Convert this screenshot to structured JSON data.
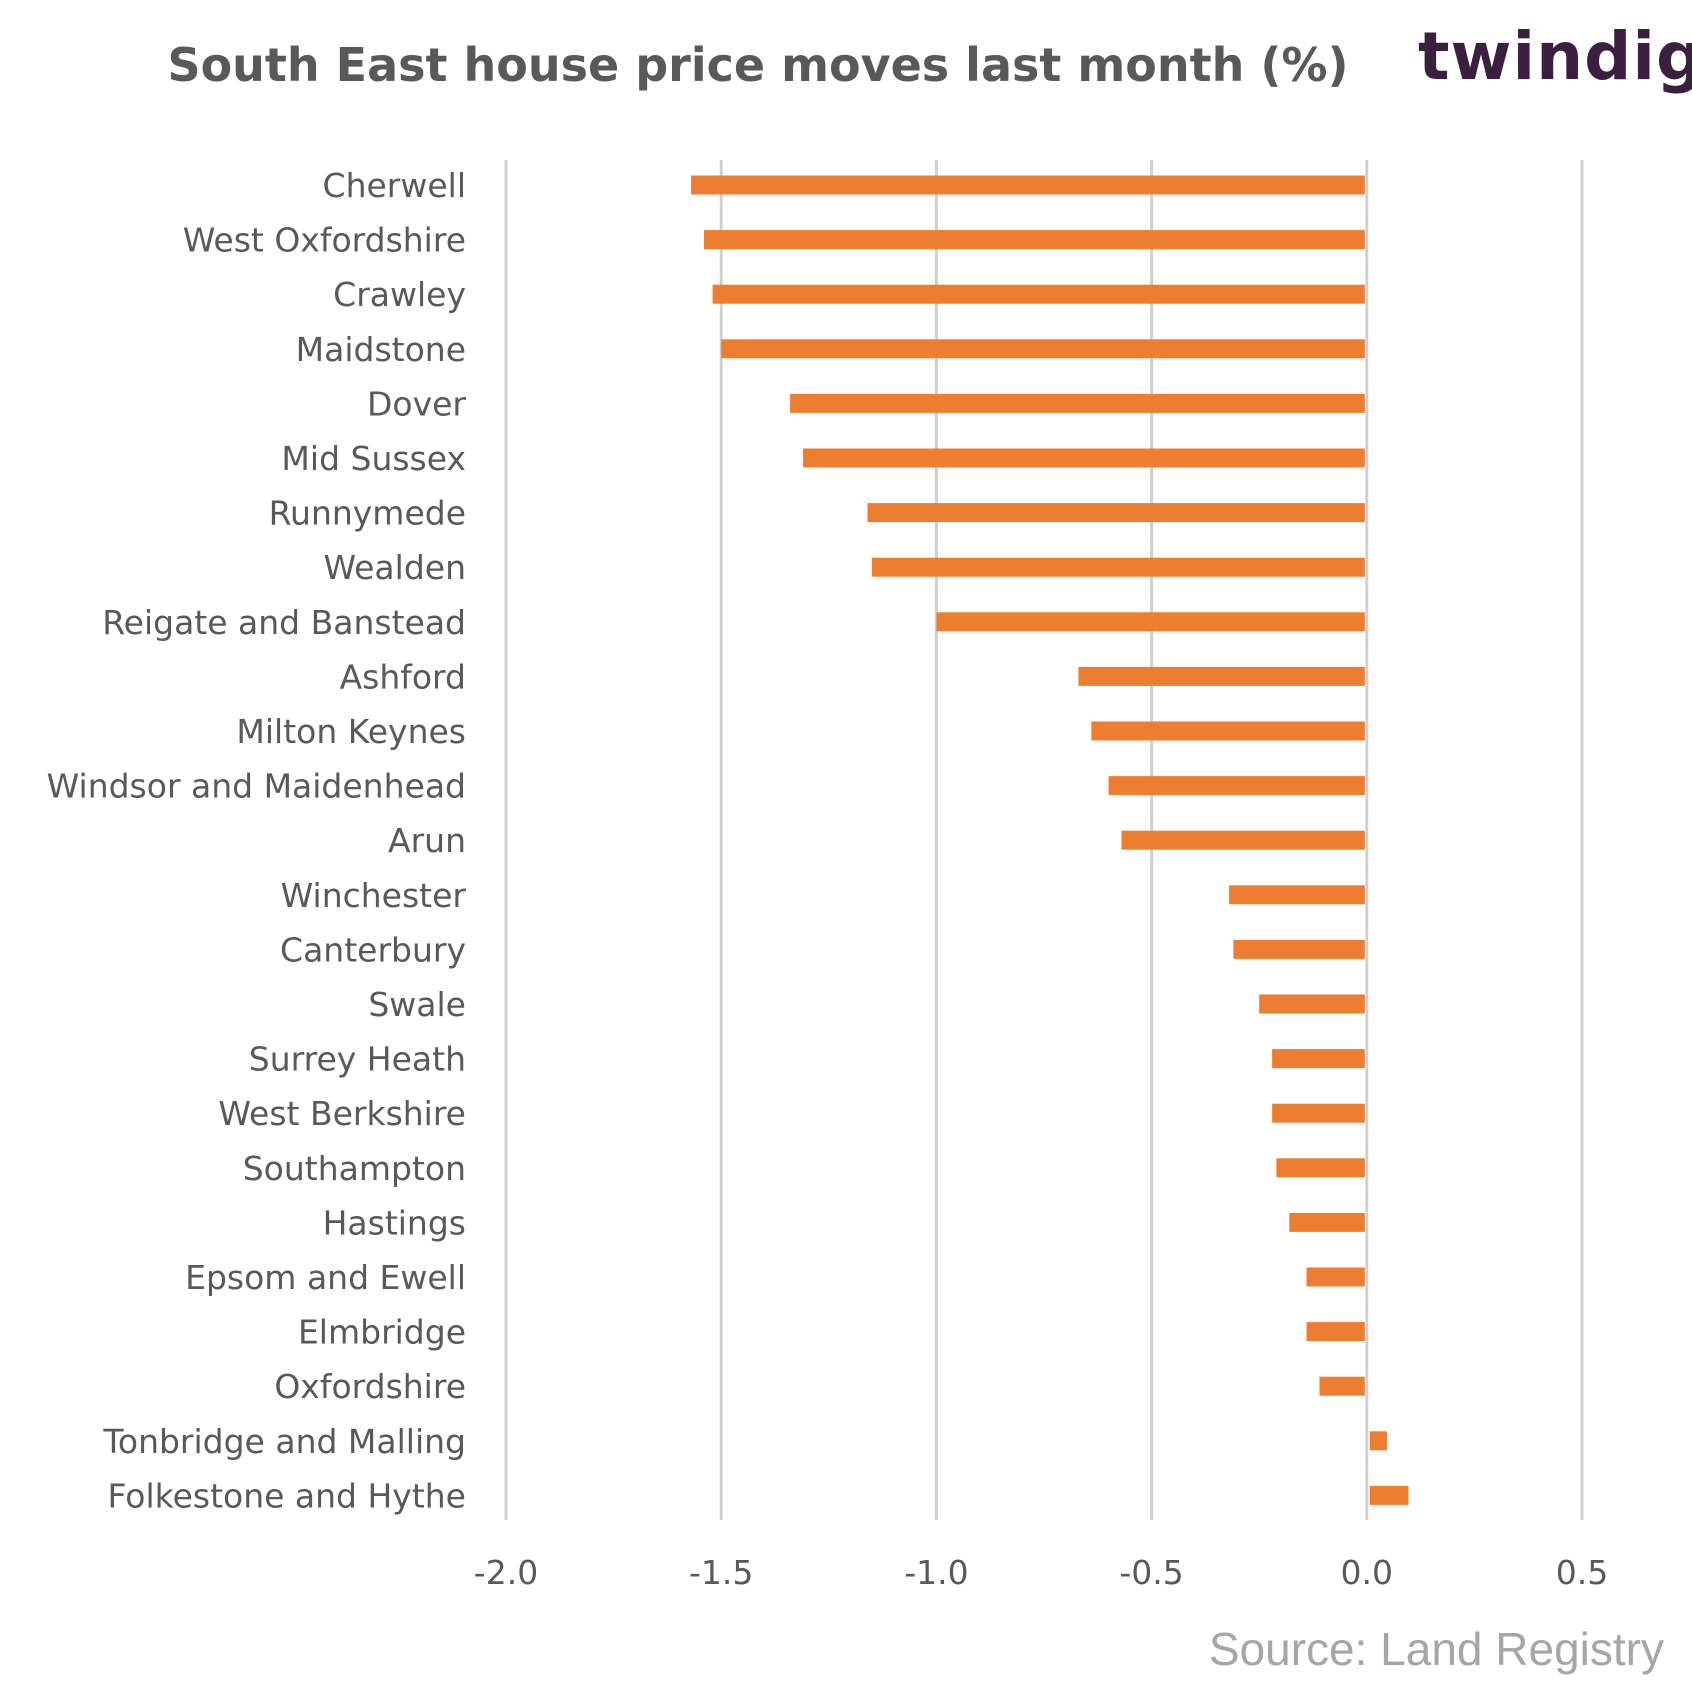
{
  "brand": {
    "name": "twindig",
    "accent_color": "#ed7d31"
  },
  "source": "Source: Land Registry",
  "chart_data": {
    "type": "bar",
    "orientation": "horizontal",
    "title": "South East house price moves last month (%)",
    "xlabel": "",
    "ylabel": "",
    "xlim": [
      -2.0,
      0.5
    ],
    "xticks": [
      "-2.0",
      "-1.5",
      "-1.0",
      "-0.5",
      "0.0",
      "0.5"
    ],
    "xtick_values": [
      -2.0,
      -1.5,
      -1.0,
      -0.5,
      0.0,
      0.5
    ],
    "grid": "vertical gridlines on",
    "bar_color": "#ed7d31",
    "categories": [
      "Cherwell",
      "West Oxfordshire",
      "Crawley",
      "Maidstone",
      "Dover",
      "Mid Sussex",
      "Runnymede",
      "Wealden",
      "Reigate and Banstead",
      "Ashford",
      "Milton Keynes",
      "Windsor and Maidenhead",
      "Arun",
      "Winchester",
      "Canterbury",
      "Swale",
      "Surrey Heath",
      "West Berkshire",
      "Southampton",
      "Hastings",
      "Epsom and Ewell",
      "Elmbridge",
      "Oxfordshire",
      "Tonbridge and Malling",
      "Folkestone and Hythe"
    ],
    "values": [
      -1.57,
      -1.54,
      -1.52,
      -1.5,
      -1.34,
      -1.31,
      -1.16,
      -1.15,
      -1.0,
      -0.67,
      -0.64,
      -0.6,
      -0.57,
      -0.32,
      -0.31,
      -0.25,
      -0.22,
      -0.22,
      -0.21,
      -0.18,
      -0.14,
      -0.14,
      -0.11,
      0.04,
      0.09
    ]
  }
}
